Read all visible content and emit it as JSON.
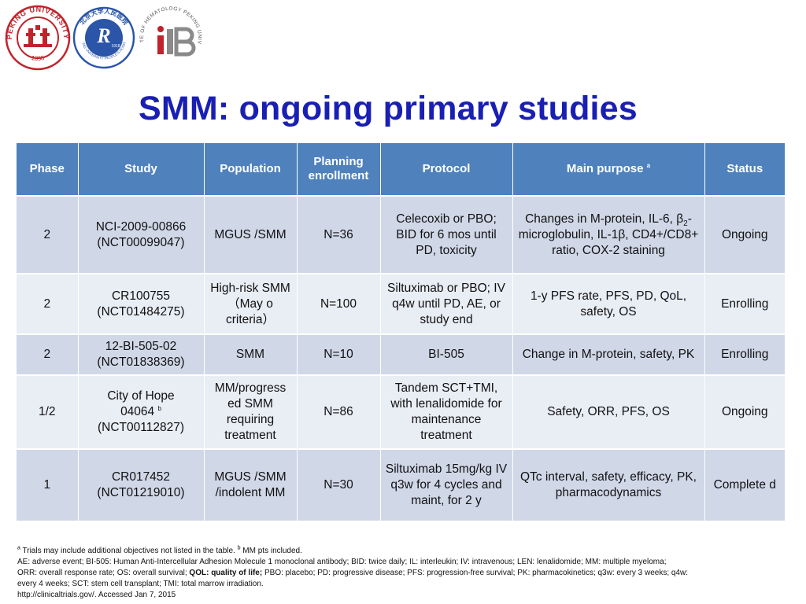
{
  "logos": {
    "pku_text": "PEKING UNIVERSITY",
    "pku_year": "1898",
    "hospital_text": "北京大学人民医院",
    "hospital_sub": "PEKING UNIVERSITY PEOPLE'S HOSPITAL",
    "hospital_year": "1918",
    "institute_text": "INSTITUTE OF HEMATOLOGY PEKING UNIVERSITY"
  },
  "title": "SMM: ongoing primary studies",
  "table": {
    "headers": {
      "phase": "Phase",
      "study": "Study",
      "population": "Population",
      "planning_1": "Planning",
      "planning_2": "enrollment",
      "protocol": "Protocol",
      "purpose": "Main purpose",
      "purpose_sup": "a",
      "status": "Status"
    },
    "rows": [
      {
        "phase": "2",
        "study_1": "NCI-2009-00866",
        "study_2": "(NCT00099047)",
        "population": "MGUS /SMM",
        "enrollment": "N=36",
        "protocol": "Celecoxib or PBO; BID for 6 mos until PD, toxicity",
        "purpose_a": "Changes in M-protein, IL-6,",
        "purpose_beta": "β",
        "purpose_sub": "2",
        "purpose_b": "-microglobulin, IL-1β, CD4+/CD8+ ratio, COX-2 staining",
        "status": "Ongoing"
      },
      {
        "phase": "2",
        "study_1": "CR100755",
        "study_2": "(NCT01484275)",
        "population": "High-risk SMM （May o criteria）",
        "enrollment": "N=100",
        "protocol": "Siltuximab or PBO; IV q4w until PD, AE, or study end",
        "purpose": "1-y PFS rate, PFS, PD, QoL, safety, OS",
        "status": "Enrolling"
      },
      {
        "phase": "2",
        "study_1": "12-BI-505-02",
        "study_2": "(NCT01838369)",
        "population": "SMM",
        "enrollment": "N=10",
        "protocol": "BI-505",
        "purpose": "Change in M-protein, safety, PK",
        "status": "Enrolling"
      },
      {
        "phase": "1/2",
        "study_1": "City of Hope",
        "study_1b": "04064",
        "study_sup": "b",
        "study_2": "(NCT00112827)",
        "population": "MM/progress ed SMM requiring treatment",
        "enrollment": "N=86",
        "protocol": "Tandem SCT+TMI, with lenalidomide for maintenance treatment",
        "purpose": "Safety, ORR, PFS, OS",
        "status": "Ongoing"
      },
      {
        "phase": "1",
        "study_1": "CR017452",
        "study_2": "(NCT01219010)",
        "population": "MGUS /SMM /indolent MM",
        "enrollment": "N=30",
        "protocol": "Siltuximab 15mg/kg IV q3w for 4 cycles and maint, for 2 y",
        "purpose": "QTc interval, safety, efficacy, PK, pharmacodynamics",
        "status": "Complete d"
      }
    ]
  },
  "footnotes": {
    "line1_sup_a": "a",
    "line1_a": " Trials may include additional objectives not listed in the table. ",
    "line1_sup_b": "b",
    "line1_b": " MM pts included.",
    "line2": "AE: adverse event; BI-505: Human Anti-Intercellular Adhesion Molecule 1 monoclonal antibody; BID: twice daily; IL: interleukin; IV: intravenous; LEN: lenalidomide; MM: multiple myeloma;",
    "line3_a": "ORR: overall response rate; OS: overall survival; ",
    "line3_bold": "QOL: quality of life;",
    "line3_b": " PBO: placebo; PD: progressive disease; PFS: progression-free survival; PK: pharmacokinetics; q3w: every 3 weeks; q4w:",
    "line4": "every 4 weeks; SCT: stem cell transplant; TMI: total marrow irradiation.",
    "line5": "http://clinicaltrials.gov/. Accessed  Jan 7, 2015"
  },
  "colors": {
    "title": "#1a1fb4",
    "header_bg": "#4f81bd",
    "row_odd": "#d0d8e8",
    "row_even": "#e9edf4",
    "pku_red": "#c0232b",
    "hospital_blue": "#2a55a8"
  }
}
